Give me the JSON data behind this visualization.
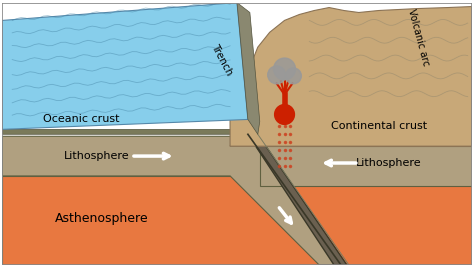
{
  "figsize": [
    4.74,
    2.65
  ],
  "dpi": 100,
  "bg_color": "#ffffff",
  "ocean_color": "#87CEEB",
  "ocean_line_color": "#4A8AAA",
  "oceanic_crust_top_color": "#7A7A60",
  "continental_surface_color": "#C8A878",
  "lithosphere_color": "#B0A080",
  "asthenosphere_color": "#E87840",
  "subduct_color": "#6A6050",
  "subduct_edge_color": "#3A3828",
  "arrow_color": "#ffffff",
  "volcano_red": "#CC2000",
  "volcano_smoke": "#999999",
  "magma_line_color": "#CC4422",
  "border_color": "#888888",
  "trench_label": "Trench",
  "volcanic_arc_label": "Volcanic arc",
  "oceanic_crust_label": "Oceanic crust",
  "continental_crust_label": "Continental crust",
  "lithosphere_label": "Lithosphere",
  "asthenosphere_label": "Asthenosphere"
}
